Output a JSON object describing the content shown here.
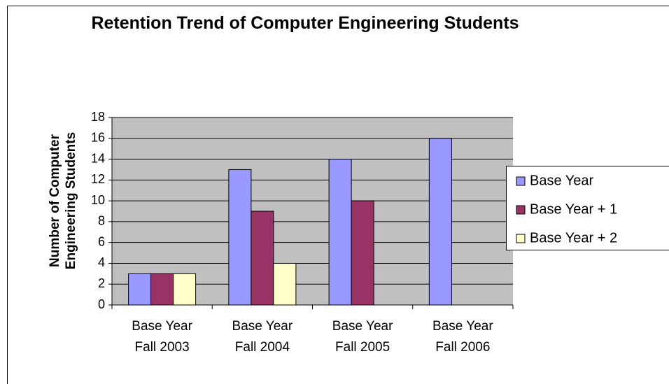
{
  "chart_data": {
    "type": "bar",
    "title": "Retention Trend of Computer Engineering Students",
    "y_label": "Number of Computer Engineering Students",
    "categories": [
      "Base Year Fall 2003",
      "Base Year Fall 2004",
      "Base Year Fall 2005",
      "Base Year Fall 2006"
    ],
    "series": [
      {
        "name": "Base Year",
        "color": "#9999ff",
        "values": [
          3,
          13,
          14,
          16
        ]
      },
      {
        "name": "Base Year + 1",
        "color": "#993366",
        "values": [
          3,
          9,
          10,
          null
        ]
      },
      {
        "name": "Base Year + 2",
        "color": "#ffffcc",
        "values": [
          3,
          4,
          null,
          null
        ]
      }
    ],
    "ylim": [
      0,
      18
    ],
    "yticks": [
      0,
      2,
      4,
      6,
      8,
      10,
      12,
      14,
      16,
      18
    ],
    "grid": true,
    "legend": "right"
  }
}
